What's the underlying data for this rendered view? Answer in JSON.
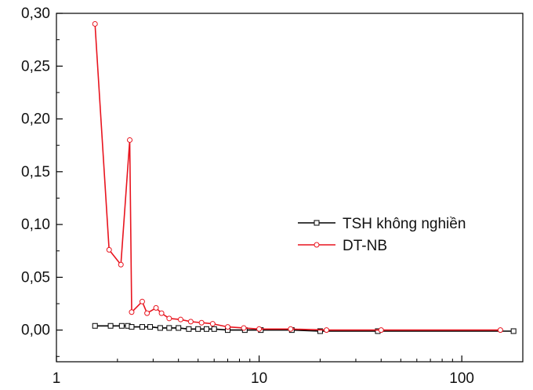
{
  "chart_data": {
    "type": "line",
    "title": "",
    "xlabel": "",
    "ylabel": "",
    "xscale": "log",
    "xlim": [
      1,
      200
    ],
    "ylim": [
      -0.03,
      0.3
    ],
    "x_ticks": [
      {
        "value": 1,
        "label": "1"
      },
      {
        "value": 10,
        "label": "10"
      },
      {
        "value": 100,
        "label": "100"
      }
    ],
    "y_ticks": [
      {
        "value": 0.0,
        "label": "0,00"
      },
      {
        "value": 0.05,
        "label": "0,05"
      },
      {
        "value": 0.1,
        "label": "0,10"
      },
      {
        "value": 0.15,
        "label": "0,15"
      },
      {
        "value": 0.2,
        "label": "0,20"
      },
      {
        "value": 0.25,
        "label": "0,25"
      },
      {
        "value": 0.3,
        "label": "0,30"
      }
    ],
    "grid": false,
    "legend_position": "center-right",
    "series": [
      {
        "name": "TSH không nghiền",
        "color": "#000000",
        "marker": "square",
        "points": [
          [
            1.55,
            0.004
          ],
          [
            1.85,
            0.004
          ],
          [
            2.1,
            0.004
          ],
          [
            2.25,
            0.004
          ],
          [
            2.35,
            0.003
          ],
          [
            2.65,
            0.003
          ],
          [
            2.9,
            0.003
          ],
          [
            3.25,
            0.002
          ],
          [
            3.6,
            0.002
          ],
          [
            4.0,
            0.002
          ],
          [
            4.5,
            0.001
          ],
          [
            5.0,
            0.001
          ],
          [
            5.5,
            0.001
          ],
          [
            6.0,
            0.001
          ],
          [
            7.0,
            0.0
          ],
          [
            8.5,
            0.0
          ],
          [
            10.2,
            0.0
          ],
          [
            14.5,
            0.0
          ],
          [
            20.0,
            -0.001
          ],
          [
            38.5,
            -0.001
          ],
          [
            180.0,
            -0.001
          ]
        ]
      },
      {
        "name": "DT-NB",
        "color": "#e8141e",
        "marker": "circle",
        "points": [
          [
            1.55,
            0.29
          ],
          [
            1.82,
            0.076
          ],
          [
            2.08,
            0.062
          ],
          [
            2.3,
            0.18
          ],
          [
            2.35,
            0.017
          ],
          [
            2.65,
            0.027
          ],
          [
            2.8,
            0.016
          ],
          [
            3.1,
            0.021
          ],
          [
            3.3,
            0.016
          ],
          [
            3.6,
            0.011
          ],
          [
            4.1,
            0.01
          ],
          [
            4.6,
            0.008
          ],
          [
            5.2,
            0.007
          ],
          [
            5.9,
            0.006
          ],
          [
            7.0,
            0.003
          ],
          [
            8.4,
            0.002
          ],
          [
            10.0,
            0.001
          ],
          [
            14.3,
            0.001
          ],
          [
            21.5,
            0.0
          ],
          [
            40.0,
            0.0
          ],
          [
            155.0,
            0.0
          ]
        ]
      }
    ]
  }
}
